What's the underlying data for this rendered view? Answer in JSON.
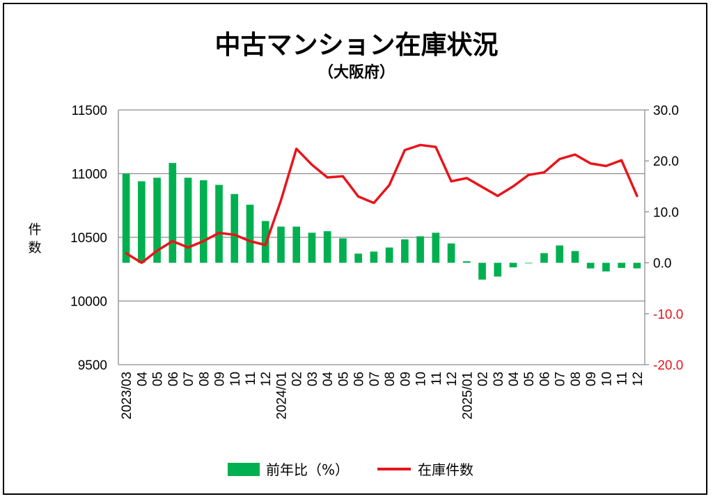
{
  "chart_data": {
    "type": "bar+line",
    "title": "中古マンション在庫状況",
    "subtitle": "（大阪府）",
    "ylabel_left": "件数",
    "ylim_left": [
      9500,
      11500
    ],
    "yticks_left": [
      "11500",
      "11000",
      "10500",
      "10000",
      "9500"
    ],
    "ylim_right": [
      -20,
      30
    ],
    "yticks_right": [
      "30.0",
      "20.0",
      "10.0",
      "0.0",
      "-10.0",
      "-20.0"
    ],
    "categories": [
      "2023/03",
      "04",
      "05",
      "06",
      "07",
      "08",
      "09",
      "10",
      "11",
      "12",
      "2024/01",
      "02",
      "03",
      "04",
      "05",
      "06",
      "07",
      "08",
      "09",
      "10",
      "11",
      "12",
      "2025/01",
      "02",
      "03",
      "04",
      "05",
      "06",
      "07",
      "08",
      "09",
      "10",
      "11",
      "12"
    ],
    "series": [
      {
        "name": "前年比（%）",
        "type": "bar",
        "axis": "right",
        "color": "#00b050",
        "values": [
          17.5,
          16.0,
          16.7,
          19.6,
          16.7,
          16.2,
          15.3,
          13.5,
          11.4,
          8.2,
          7.1,
          7.1,
          5.9,
          6.2,
          4.8,
          1.8,
          2.2,
          3.0,
          4.6,
          5.2,
          5.9,
          3.8,
          0.3,
          -3.3,
          -2.7,
          -0.9,
          0.0,
          1.9,
          3.4,
          2.3,
          -1.1,
          -1.7,
          -1.0,
          -1.1
        ]
      },
      {
        "name": "在庫件数",
        "type": "line",
        "axis": "left",
        "color": "#e8141b",
        "values": [
          10375,
          10300,
          10395,
          10470,
          10420,
          10470,
          10535,
          10520,
          10470,
          10440,
          10790,
          11195,
          11070,
          10970,
          10980,
          10820,
          10770,
          10910,
          11185,
          11225,
          11210,
          10940,
          10965,
          10895,
          10825,
          10900,
          10990,
          11010,
          11115,
          11150,
          11080,
          11060,
          11105,
          10825
        ]
      }
    ],
    "grid": true,
    "legend_position": "bottom"
  }
}
